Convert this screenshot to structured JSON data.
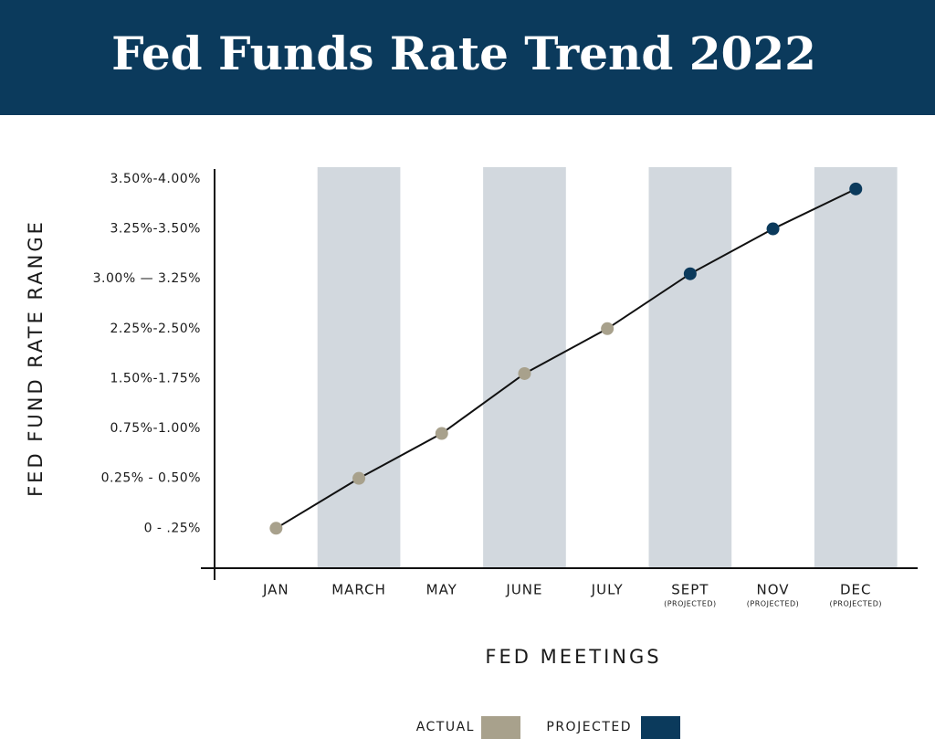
{
  "chart_data": {
    "type": "line",
    "title": "Fed Funds Rate Trend 2022",
    "y_label": "FED FUND RATE RANGE",
    "x_label": "FED MEETINGS",
    "categories": [
      "JAN",
      "MARCH",
      "MAY",
      "JUNE",
      "JULY",
      "SEPT",
      "NOV",
      "DEC"
    ],
    "x_sublabels": [
      null,
      null,
      null,
      null,
      null,
      "(PROJECTED)",
      "(PROJECTED)",
      "(PROJECTED)"
    ],
    "series": [
      {
        "name": "ACTUAL",
        "color": "#a8a18c",
        "values": [
          0,
          1,
          1.9,
          3.1,
          4,
          null,
          null,
          null
        ]
      },
      {
        "name": "PROJECTED",
        "color": "#0b3a5c",
        "values": [
          null,
          null,
          null,
          null,
          null,
          5.1,
          6,
          6.8
        ]
      }
    ],
    "line_color": "#111111",
    "band_color": "#d2d8de",
    "header_color": "#0b3a5c",
    "ylim": [
      -0.8,
      7.2
    ],
    "yticks": [
      {
        "value": 0,
        "label": "0 - .25%"
      },
      {
        "value": 1,
        "label": "0.25% - 0.50%"
      },
      {
        "value": 2,
        "label": "0.75%-1.00%"
      },
      {
        "value": 3,
        "label": "1.50%-1.75%"
      },
      {
        "value": 4,
        "label": "2.25%-2.50%"
      },
      {
        "value": 5,
        "label": "3.00% — 3.25%"
      },
      {
        "value": 6,
        "label": "3.25%-3.50%"
      },
      {
        "value": 7,
        "label": "3.50%-4.00%"
      }
    ]
  }
}
